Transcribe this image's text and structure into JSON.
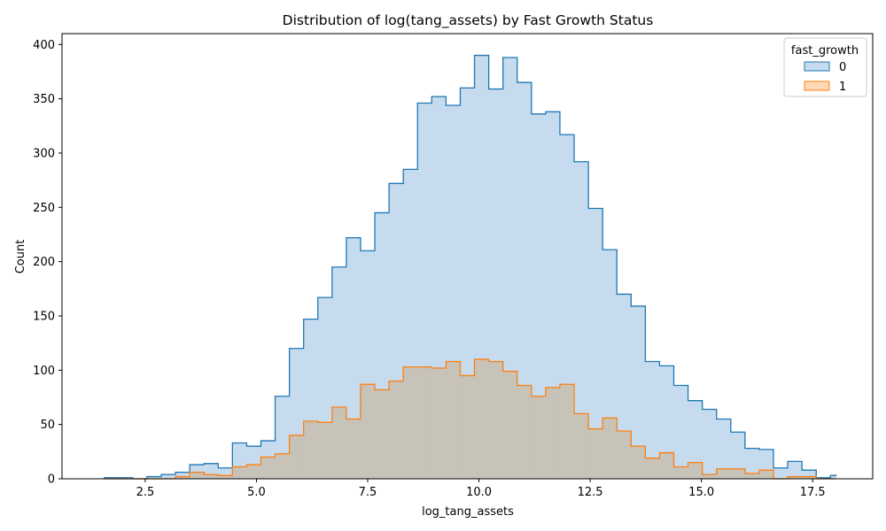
{
  "chart_data": {
    "type": "area",
    "title": "Distribution of log(tang_assets) by Fast Growth Status",
    "xlabel": "log_tang_assets",
    "ylabel": "Count",
    "xlim": [
      0.63,
      18.85
    ],
    "ylim": [
      0,
      410
    ],
    "x_ticks": [
      2.5,
      5.0,
      7.5,
      10.0,
      12.5,
      15.0,
      17.5
    ],
    "x_tick_labels": [
      "2.5",
      "5.0",
      "7.5",
      "10.0",
      "12.5",
      "15.0",
      "17.5"
    ],
    "y_ticks": [
      0,
      50,
      100,
      150,
      200,
      250,
      300,
      350,
      400
    ],
    "y_tick_labels": [
      "0",
      "50",
      "100",
      "150",
      "200",
      "250",
      "300",
      "350",
      "400"
    ],
    "bin_edges": [
      1.58,
      1.9,
      2.22,
      2.54,
      2.86,
      3.18,
      3.5,
      3.82,
      4.14,
      4.46,
      4.78,
      5.1,
      5.42,
      5.74,
      6.06,
      6.38,
      6.7,
      7.02,
      7.34,
      7.66,
      7.98,
      8.3,
      8.62,
      8.94,
      9.26,
      9.58,
      9.9,
      10.22,
      10.54,
      10.86,
      11.18,
      11.5,
      11.82,
      12.14,
      12.46,
      12.78,
      13.1,
      13.42,
      13.74,
      14.06,
      14.38,
      14.7,
      15.02,
      15.34,
      15.66,
      15.98,
      16.3,
      16.62,
      16.94,
      17.26,
      17.58,
      17.9,
      18.02
    ],
    "legend_title": "fast_growth",
    "legend_position": "upper-right",
    "series": [
      {
        "name": "0",
        "stroke": "#1f77b4",
        "fill": "#c6dcee",
        "values": [
          1,
          1,
          0,
          2,
          4,
          6,
          13,
          14,
          10,
          33,
          30,
          35,
          76,
          120,
          147,
          167,
          195,
          222,
          210,
          245,
          272,
          285,
          346,
          352,
          344,
          360,
          390,
          359,
          388,
          365,
          336,
          338,
          317,
          292,
          249,
          211,
          170,
          159,
          108,
          104,
          86,
          72,
          64,
          55,
          43,
          28,
          27,
          10,
          16,
          8,
          1,
          3,
          4
        ]
      },
      {
        "name": "1",
        "stroke": "#ff7f0e",
        "fill": "#c7c3b8",
        "legend_fill": "#ffd8b6",
        "values": [
          0,
          0,
          0,
          0,
          0,
          2,
          6,
          4,
          3,
          11,
          13,
          20,
          23,
          40,
          53,
          52,
          66,
          55,
          87,
          82,
          90,
          103,
          103,
          102,
          108,
          95,
          110,
          108,
          99,
          86,
          76,
          84,
          87,
          60,
          46,
          56,
          44,
          30,
          19,
          24,
          11,
          15,
          4,
          9,
          9,
          5,
          8,
          0,
          2,
          2,
          0,
          0,
          0
        ]
      }
    ]
  }
}
